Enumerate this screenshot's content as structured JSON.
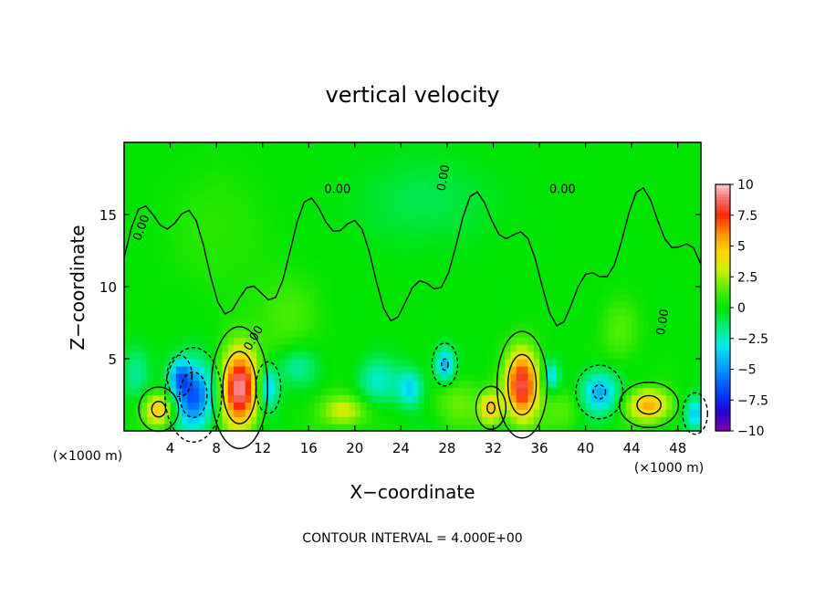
{
  "chart_data": {
    "type": "heatmap",
    "title": "vertical velocity",
    "xlabel": "X−coordinate",
    "ylabel": "Z−coordinate",
    "x_unit": "(×1000 m)",
    "y_unit": "(×1000 m)",
    "xlim": [
      0,
      50
    ],
    "ylim": [
      0,
      20
    ],
    "x_ticks": [
      4,
      8,
      12,
      16,
      20,
      24,
      28,
      32,
      36,
      40,
      44,
      48
    ],
    "y_ticks": [
      5,
      10,
      15
    ],
    "colorbar": {
      "range": [
        -10,
        10
      ],
      "ticks": [
        10,
        7.5,
        5,
        2.5,
        0,
        -2.5,
        -5,
        -7.5,
        -10
      ],
      "tick_labels": [
        "10",
        "7.5",
        "5",
        "2.5",
        "0",
        "−2.5",
        "−5",
        "−7.5",
        "−10"
      ]
    },
    "contour_label": "0.00",
    "footnote": "CONTOUR INTERVAL = 4.000E+00",
    "features": [
      {
        "x": 10.0,
        "z": 3.0,
        "w": 9.5,
        "sx": 1.1,
        "sz": 1.9
      },
      {
        "x": 34.5,
        "z": 3.2,
        "w": 8.5,
        "sx": 1.0,
        "sz": 1.7
      },
      {
        "x": 3.0,
        "z": 1.5,
        "w": 5.0,
        "sx": 0.9,
        "sz": 0.8
      },
      {
        "x": 45.5,
        "z": 1.8,
        "w": 5.5,
        "sx": 1.3,
        "sz": 0.8
      },
      {
        "x": 31.8,
        "z": 1.6,
        "w": 4.5,
        "sx": 0.7,
        "sz": 0.8
      },
      {
        "x": 19.0,
        "z": 1.4,
        "w": 3.5,
        "sx": 1.4,
        "sz": 0.8
      },
      {
        "x": 6.0,
        "z": 2.5,
        "w": -6.5,
        "sx": 1.2,
        "sz": 1.6
      },
      {
        "x": 4.8,
        "z": 3.8,
        "w": -4.0,
        "sx": 0.6,
        "sz": 0.8
      },
      {
        "x": 12.5,
        "z": 3.0,
        "w": -4.0,
        "sx": 0.6,
        "sz": 1.0
      },
      {
        "x": 27.8,
        "z": 4.6,
        "w": -4.5,
        "sx": 0.6,
        "sz": 0.8
      },
      {
        "x": 24.8,
        "z": 3.0,
        "w": -3.5,
        "sx": 0.8,
        "sz": 0.9
      },
      {
        "x": 41.2,
        "z": 2.7,
        "w": -4.5,
        "sx": 1.1,
        "sz": 1.0
      },
      {
        "x": 49.5,
        "z": 1.2,
        "w": -4.0,
        "sx": 0.6,
        "sz": 0.8
      },
      {
        "x": 37.0,
        "z": 3.8,
        "w": -3.5,
        "sx": 0.5,
        "sz": 0.7
      },
      {
        "x": 15.0,
        "z": 4.5,
        "w": -2.0,
        "sx": 1.2,
        "sz": 0.9
      },
      {
        "x": 22.0,
        "z": 3.5,
        "w": -2.5,
        "sx": 1.2,
        "sz": 1.1
      },
      {
        "x": 1.0,
        "z": 4.0,
        "w": -1.8,
        "sx": 0.8,
        "sz": 1.2
      },
      {
        "x": 14.0,
        "z": 8.0,
        "w": 1.3,
        "sx": 2.0,
        "sz": 2.0
      },
      {
        "x": 43.0,
        "z": 7.0,
        "w": 1.5,
        "sx": 1.2,
        "sz": 1.5
      },
      {
        "x": 29.0,
        "z": 2.0,
        "w": 1.8,
        "sx": 1.5,
        "sz": 1.2
      },
      {
        "x": 38.0,
        "z": 1.5,
        "w": 1.5,
        "sx": 1.2,
        "sz": 1.0
      },
      {
        "x": 26.0,
        "z": 16.0,
        "w": -1.0,
        "sx": 4.0,
        "sz": 2.0
      },
      {
        "x": 8.0,
        "z": 14.0,
        "w": 0.8,
        "sx": 3.0,
        "sz": 3.0
      }
    ]
  }
}
